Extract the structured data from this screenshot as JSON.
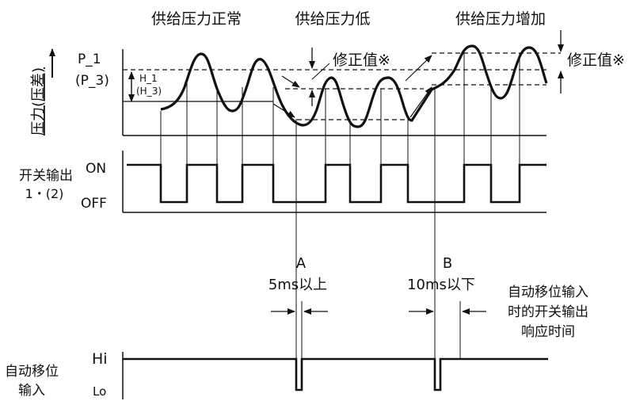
{
  "headers": {
    "normal": "供给压力正常",
    "low": "供给压力低",
    "increase": "供给压力增加"
  },
  "y_axis_label": "压力(压差)",
  "levels": {
    "p_label": "P_1",
    "p_label_alt": "(P_3)",
    "h_label": "H_1",
    "h_label_alt": "(H_3)"
  },
  "correction": {
    "low_label": "修正值※",
    "high_label": "修正值※"
  },
  "switch_output": {
    "label_line1": "开关输出",
    "label_line2": "1・(2)",
    "on": "ON",
    "off": "OFF"
  },
  "markers": {
    "a_label": "A",
    "a_note": "5ms以上",
    "b_label": "B",
    "b_note": "10ms以下"
  },
  "response_note": {
    "line1": "自动移位输入",
    "line2": "时的开关输出",
    "line3": "响应时间"
  },
  "auto_shift": {
    "label_line1": "自动移位",
    "label_line2": "输入",
    "hi": "Hi",
    "lo": "Lo"
  }
}
